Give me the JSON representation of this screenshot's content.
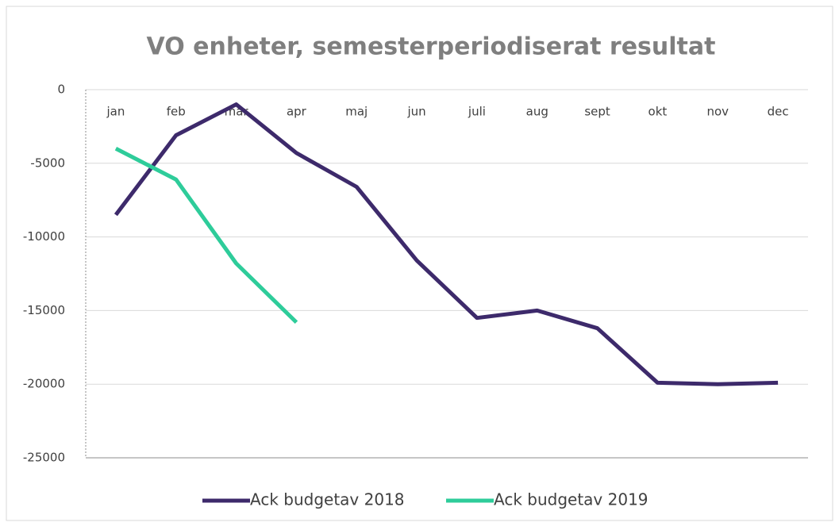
{
  "chart_data": {
    "type": "line",
    "title": "VO enheter, semesterperiodiserat resultat",
    "categories": [
      "jan",
      "feb",
      "mar",
      "apr",
      "maj",
      "jun",
      "juli",
      "aug",
      "sept",
      "okt",
      "nov",
      "dec"
    ],
    "series": [
      {
        "name": "Ack budgetav 2018",
        "color": "#3d2a6b",
        "values": [
          -8500,
          -3100,
          -1000,
          -4300,
          -6600,
          -11600,
          -15500,
          -15000,
          -16200,
          -19900,
          -20000,
          -19900
        ]
      },
      {
        "name": "Ack budgetav 2019",
        "color": "#2ecc9a",
        "values": [
          -4000,
          -6100,
          -11800,
          -15800,
          null,
          null,
          null,
          null,
          null,
          null,
          null,
          null
        ]
      }
    ],
    "ylim": [
      -25000,
      0
    ],
    "yticks": [
      -25000,
      -20000,
      -15000,
      -10000,
      -5000,
      0
    ],
    "grid": true
  }
}
